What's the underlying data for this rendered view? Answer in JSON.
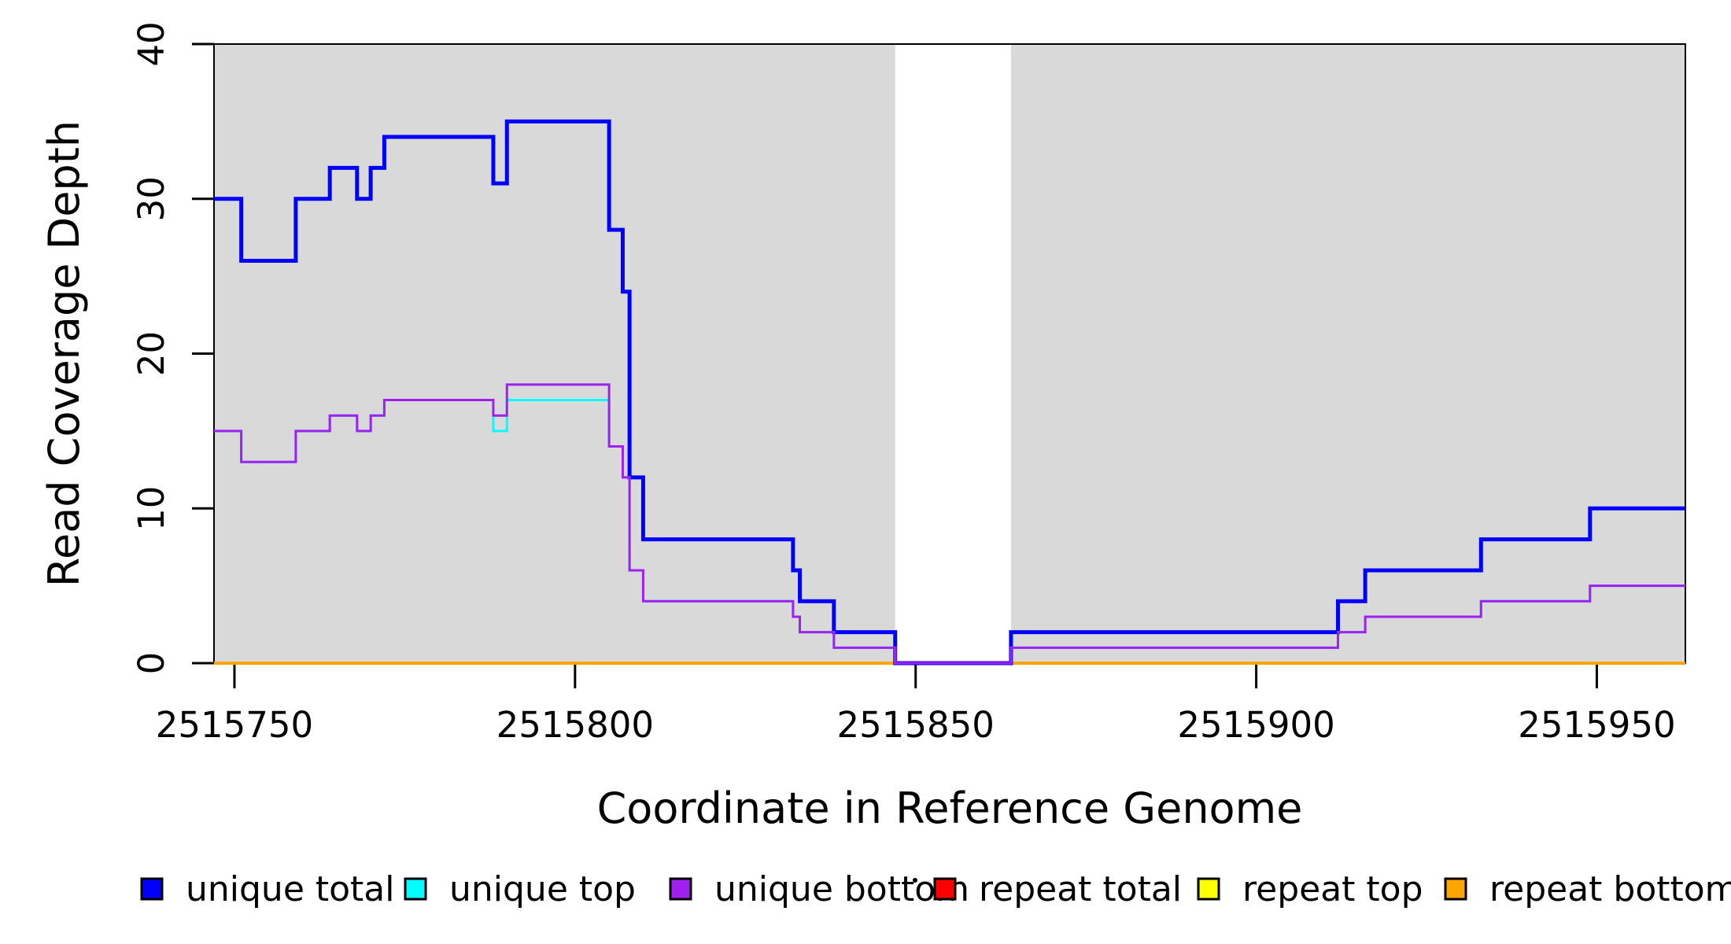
{
  "figure": {
    "background": "#FFFFFF",
    "shade_color": "#D9D9D9",
    "axis_color": "#000000"
  },
  "chart_data": {
    "type": "line",
    "step": true,
    "title": "",
    "xlabel": "Coordinate in Reference Genome",
    "ylabel": "Read Coverage Depth",
    "xlim": [
      2515747,
      2515963
    ],
    "ylim": [
      0,
      40
    ],
    "x_ticks": [
      2515750,
      2515800,
      2515850,
      2515900,
      2515950
    ],
    "y_ticks": [
      0,
      10,
      20,
      30,
      40
    ],
    "grid": false,
    "legend_position": "bottom",
    "shaded_regions": [
      {
        "x0": 2515747,
        "x1": 2515847,
        "color": "#D9D9D9"
      },
      {
        "x0": 2515864,
        "x1": 2515963,
        "color": "#D9D9D9"
      }
    ],
    "series": [
      {
        "name": "repeat total",
        "color": "#FF0000",
        "width": 3,
        "steps": [
          [
            2515747,
            0
          ]
        ]
      },
      {
        "name": "repeat top",
        "color": "#FFFF00",
        "width": 3,
        "steps": [
          [
            2515747,
            0
          ]
        ]
      },
      {
        "name": "repeat bottom",
        "color": "#FFA500",
        "width": 4,
        "steps": [
          [
            2515747,
            0
          ]
        ]
      },
      {
        "name": "unique total",
        "color": "#0000FF",
        "width": 5,
        "steps": [
          [
            2515747,
            30
          ],
          [
            2515751,
            26
          ],
          [
            2515759,
            30
          ],
          [
            2515764,
            32
          ],
          [
            2515768,
            30
          ],
          [
            2515770,
            32
          ],
          [
            2515772,
            34
          ],
          [
            2515788,
            31
          ],
          [
            2515790,
            35
          ],
          [
            2515805,
            28
          ],
          [
            2515807,
            24
          ],
          [
            2515808,
            12
          ],
          [
            2515810,
            8
          ],
          [
            2515832,
            6
          ],
          [
            2515833,
            4
          ],
          [
            2515838,
            2
          ],
          [
            2515847,
            0
          ],
          [
            2515864,
            2
          ],
          [
            2515912,
            4
          ],
          [
            2515916,
            6
          ],
          [
            2515933,
            8
          ],
          [
            2515949,
            10
          ]
        ]
      },
      {
        "name": "unique top",
        "color": "#00FFFF",
        "width": 3,
        "steps": [
          [
            2515747,
            15
          ],
          [
            2515751,
            13
          ],
          [
            2515759,
            15
          ],
          [
            2515764,
            16
          ],
          [
            2515768,
            15
          ],
          [
            2515770,
            16
          ],
          [
            2515772,
            17
          ],
          [
            2515788,
            15
          ],
          [
            2515790,
            17
          ],
          [
            2515805,
            14
          ],
          [
            2515807,
            12
          ],
          [
            2515808,
            6
          ],
          [
            2515810,
            4
          ],
          [
            2515832,
            3
          ],
          [
            2515833,
            2
          ],
          [
            2515838,
            1
          ],
          [
            2515847,
            0
          ],
          [
            2515864,
            1
          ],
          [
            2515912,
            2
          ],
          [
            2515916,
            3
          ],
          [
            2515933,
            4
          ],
          [
            2515949,
            5
          ]
        ]
      },
      {
        "name": "unique bottom",
        "color": "#A020F0",
        "width": 3,
        "steps": [
          [
            2515747,
            15
          ],
          [
            2515751,
            13
          ],
          [
            2515759,
            15
          ],
          [
            2515764,
            16
          ],
          [
            2515768,
            15
          ],
          [
            2515770,
            16
          ],
          [
            2515772,
            17
          ],
          [
            2515788,
            16
          ],
          [
            2515790,
            18
          ],
          [
            2515805,
            14
          ],
          [
            2515807,
            12
          ],
          [
            2515808,
            6
          ],
          [
            2515810,
            4
          ],
          [
            2515832,
            3
          ],
          [
            2515833,
            2
          ],
          [
            2515838,
            1
          ],
          [
            2515847,
            0
          ],
          [
            2515864,
            1
          ],
          [
            2515912,
            2
          ],
          [
            2515916,
            3
          ],
          [
            2515933,
            4
          ],
          [
            2515949,
            5
          ]
        ]
      }
    ]
  },
  "legend": {
    "items": [
      {
        "label": "unique total",
        "color": "#0000FF"
      },
      {
        "label": "unique top",
        "color": "#00FFFF"
      },
      {
        "label": "unique bottom",
        "color": "#A020F0"
      },
      {
        "label": "repeat total",
        "color": "#FF0000"
      },
      {
        "label": "repeat top",
        "color": "#FFFF00"
      },
      {
        "label": "repeat bottom",
        "color": "#FFA500"
      }
    ],
    "stray_mark": "."
  }
}
